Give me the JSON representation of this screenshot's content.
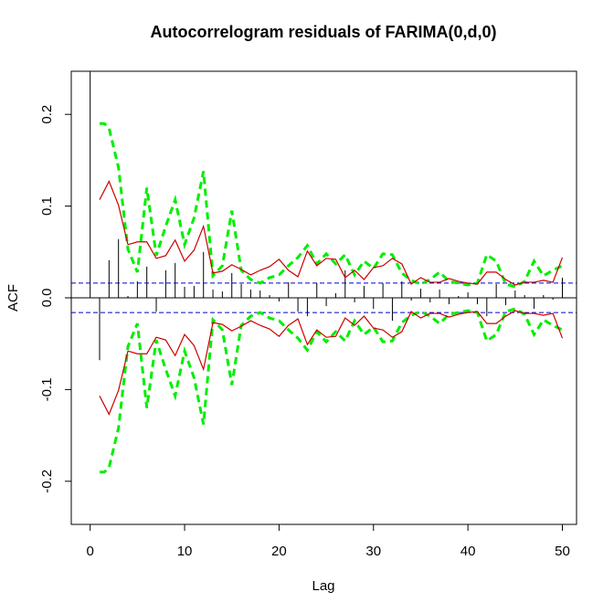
{
  "chart_data": {
    "type": "acf",
    "title": "Autocorrelogram residuals of FARIMA(0,d,0)",
    "xlabel": "Lag",
    "ylabel": "ACF",
    "xlim": [
      -2,
      51.5
    ],
    "ylim": [
      -0.247,
      0.247
    ],
    "xticks": [
      "0",
      "10",
      "20",
      "30",
      "40",
      "50"
    ],
    "yticks": [
      "-0.2",
      "-0.1",
      "0.0",
      "0.1",
      "0.2"
    ],
    "grid": false,
    "colors": {
      "acf_spikes": "#000000",
      "zero_line": "#000000",
      "ci_line": "#0000cc",
      "red_band": "#cc0000",
      "green_band": "#00ee00"
    },
    "acf": {
      "lags": [
        0,
        1,
        2,
        3,
        4,
        5,
        6,
        7,
        8,
        9,
        10,
        11,
        12,
        13,
        14,
        15,
        16,
        17,
        18,
        19,
        20,
        21,
        22,
        23,
        24,
        25,
        26,
        27,
        28,
        29,
        30,
        31,
        32,
        33,
        34,
        35,
        36,
        37,
        38,
        39,
        40,
        41,
        42,
        43,
        44,
        45,
        46,
        47,
        48,
        49,
        50
      ],
      "values": [
        1.0,
        -0.068,
        0.041,
        0.064,
        0.002,
        0.018,
        0.034,
        -0.015,
        0.03,
        0.038,
        0.012,
        0.013,
        0.05,
        0.009,
        0.007,
        0.027,
        0.015,
        0.009,
        0.008,
        0.003,
        -0.004,
        0.017,
        -0.015,
        -0.02,
        0.016,
        -0.009,
        0.005,
        0.03,
        -0.005,
        0.013,
        -0.012,
        0.016,
        -0.025,
        0.018,
        -0.003,
        0.01,
        -0.005,
        0.009,
        -0.007,
        0.002,
        0.006,
        -0.007,
        -0.02,
        0.015,
        -0.008,
        0.008,
        0.003,
        -0.012,
        0.003,
        -0.002,
        0.022
      ]
    },
    "ci_level": 0.016,
    "red_band": {
      "lags": [
        1,
        2,
        3,
        4,
        5,
        6,
        7,
        8,
        9,
        10,
        11,
        12,
        13,
        14,
        15,
        16,
        17,
        18,
        19,
        20,
        21,
        22,
        23,
        24,
        25,
        26,
        27,
        28,
        29,
        30,
        31,
        32,
        33,
        34,
        35,
        36,
        37,
        38,
        39,
        40,
        41,
        42,
        43,
        44,
        45,
        46,
        47,
        48,
        49,
        50
      ],
      "values": [
        0.107,
        0.127,
        0.101,
        0.058,
        0.061,
        0.061,
        0.043,
        0.046,
        0.063,
        0.04,
        0.052,
        0.078,
        0.027,
        0.029,
        0.036,
        0.031,
        0.025,
        0.03,
        0.034,
        0.042,
        0.03,
        0.023,
        0.051,
        0.035,
        0.043,
        0.042,
        0.022,
        0.03,
        0.02,
        0.033,
        0.035,
        0.043,
        0.037,
        0.015,
        0.022,
        0.017,
        0.017,
        0.021,
        0.018,
        0.016,
        0.015,
        0.028,
        0.028,
        0.02,
        0.014,
        0.017,
        0.017,
        0.019,
        0.017,
        0.044
      ]
    },
    "green_band": {
      "lags": [
        1,
        1.5,
        2,
        3,
        4,
        5,
        6,
        7,
        8,
        9,
        10,
        11,
        12,
        13,
        14,
        15,
        16,
        17,
        18,
        19,
        20,
        21,
        22,
        23,
        24,
        25,
        26,
        27,
        28,
        29,
        30,
        31,
        32,
        33,
        34,
        35,
        36,
        37,
        38,
        39,
        40,
        41,
        42,
        43,
        44,
        45,
        46,
        47,
        48,
        49,
        50
      ],
      "values": [
        0.19,
        0.19,
        0.185,
        0.142,
        0.053,
        0.028,
        0.12,
        0.046,
        0.078,
        0.107,
        0.058,
        0.087,
        0.138,
        0.024,
        0.035,
        0.095,
        0.03,
        0.02,
        0.016,
        0.022,
        0.025,
        0.035,
        0.044,
        0.057,
        0.037,
        0.048,
        0.037,
        0.047,
        0.025,
        0.04,
        0.032,
        0.048,
        0.047,
        0.027,
        0.019,
        0.015,
        0.02,
        0.028,
        0.018,
        0.016,
        0.014,
        0.016,
        0.047,
        0.04,
        0.015,
        0.012,
        0.018,
        0.04,
        0.024,
        0.03,
        0.035
      ]
    }
  }
}
